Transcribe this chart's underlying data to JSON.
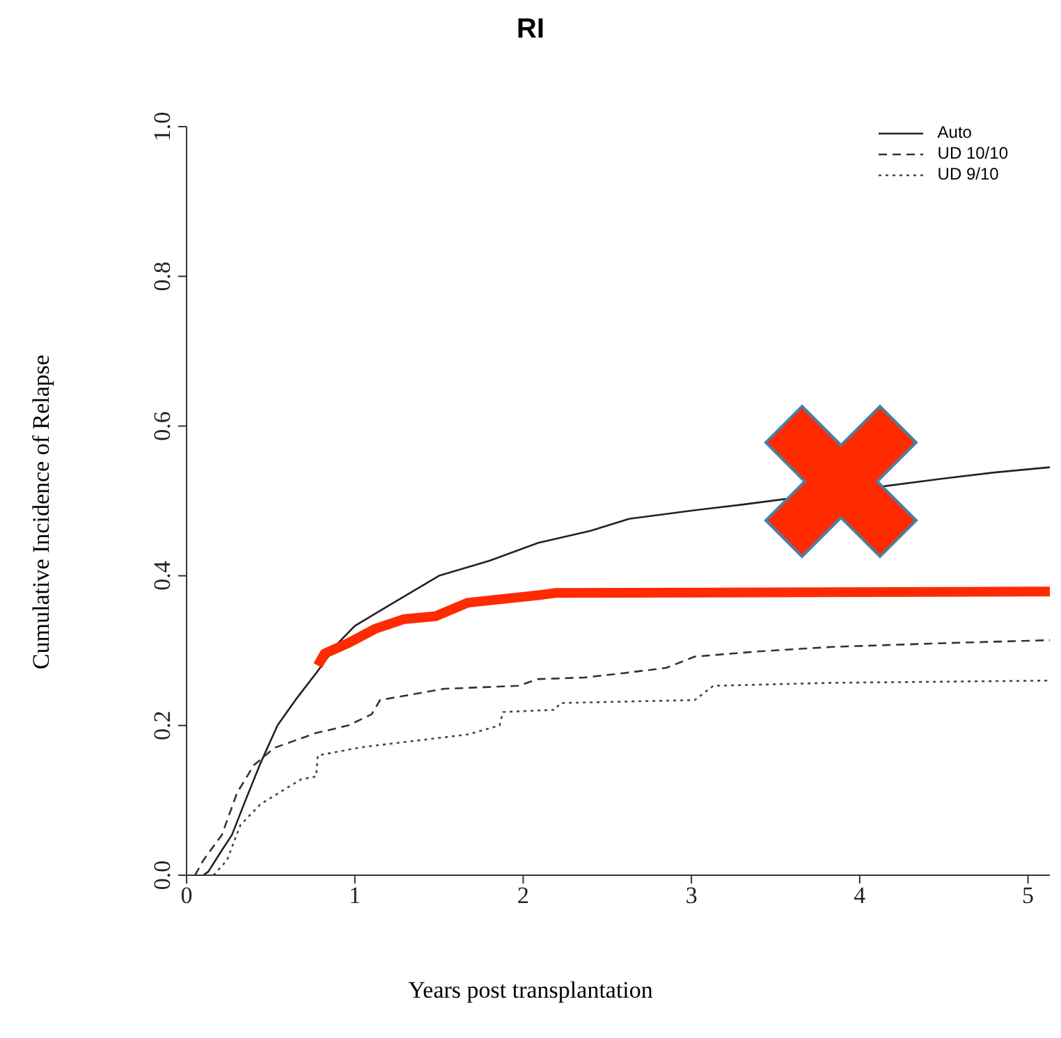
{
  "chart_data": {
    "type": "line",
    "title": "RI",
    "xlabel": "Years post transplantation",
    "ylabel": "Cumulative Incidence of Relapse",
    "xlim": [
      0,
      5.13
    ],
    "xticks": [
      0,
      1,
      2,
      3,
      4,
      5
    ],
    "ylim": [
      0,
      1
    ],
    "yticks": [
      {
        "value": 0,
        "label": "0.0"
      },
      {
        "value": 0.2,
        "label": "0.2"
      },
      {
        "value": 0.4,
        "label": "0.4"
      },
      {
        "value": 0.6,
        "label": "0.6"
      },
      {
        "value": 0.8,
        "label": "0.8"
      },
      {
        "value": 1,
        "label": "1.0"
      }
    ],
    "grid": false,
    "legend": "top right",
    "marker": "none",
    "series": [
      {
        "name": "Auto",
        "color": "#222222",
        "line_style": "solid",
        "x": [
          0.1,
          0.13,
          0.2,
          0.27,
          0.35,
          0.44,
          0.54,
          0.65,
          0.77,
          0.9,
          1,
          1.2,
          1.5,
          1.8,
          2.09,
          2.4,
          2.63,
          3,
          3.3,
          4.5,
          4.8,
          5.13
        ],
        "values": [
          0,
          0.005,
          0.03,
          0.054,
          0.1,
          0.15,
          0.2,
          0.235,
          0.27,
          0.31,
          0.333,
          0.36,
          0.4,
          0.42,
          0.444,
          0.46,
          0.476,
          0.487,
          0.495,
          0.53,
          0.538,
          0.545
        ]
      },
      {
        "name": "UD 10/10",
        "color": "#333333",
        "line_style": "dashed",
        "x": [
          0.05,
          0.1,
          0.21,
          0.3,
          0.4,
          0.52,
          0.77,
          0.96,
          1.1,
          1.15,
          1.53,
          1.97,
          2.09,
          2.36,
          2.6,
          2.85,
          3.02,
          3.4,
          3.84,
          4.5,
          5.13
        ],
        "values": [
          0,
          0.02,
          0.054,
          0.11,
          0.147,
          0.17,
          0.19,
          0.2,
          0.215,
          0.234,
          0.249,
          0.253,
          0.262,
          0.264,
          0.27,
          0.277,
          0.292,
          0.299,
          0.305,
          0.31,
          0.314
        ]
      },
      {
        "name": "UD 9/10",
        "color": "#444444",
        "line_style": "dotted",
        "x": [
          0.16,
          0.24,
          0.32,
          0.44,
          0.68,
          0.77,
          0.78,
          1.04,
          1.67,
          1.86,
          1.88,
          2.19,
          2.22,
          3.02,
          3.13,
          3.84,
          5.13
        ],
        "values": [
          0,
          0.02,
          0.067,
          0.095,
          0.128,
          0.132,
          0.16,
          0.171,
          0.188,
          0.2,
          0.218,
          0.221,
          0.23,
          0.234,
          0.253,
          0.257,
          0.26
        ]
      },
      {
        "color": "#ff2a00",
        "line_style": "solid",
        "x": [
          0.78,
          0.82,
          0.96,
          1.12,
          1.29,
          1.48,
          1.67,
          2.09,
          2.19,
          5.13
        ],
        "values": [
          0.28,
          0.296,
          0.31,
          0.329,
          0.342,
          0.346,
          0.364,
          0.374,
          0.377,
          0.379
        ]
      }
    ]
  }
}
